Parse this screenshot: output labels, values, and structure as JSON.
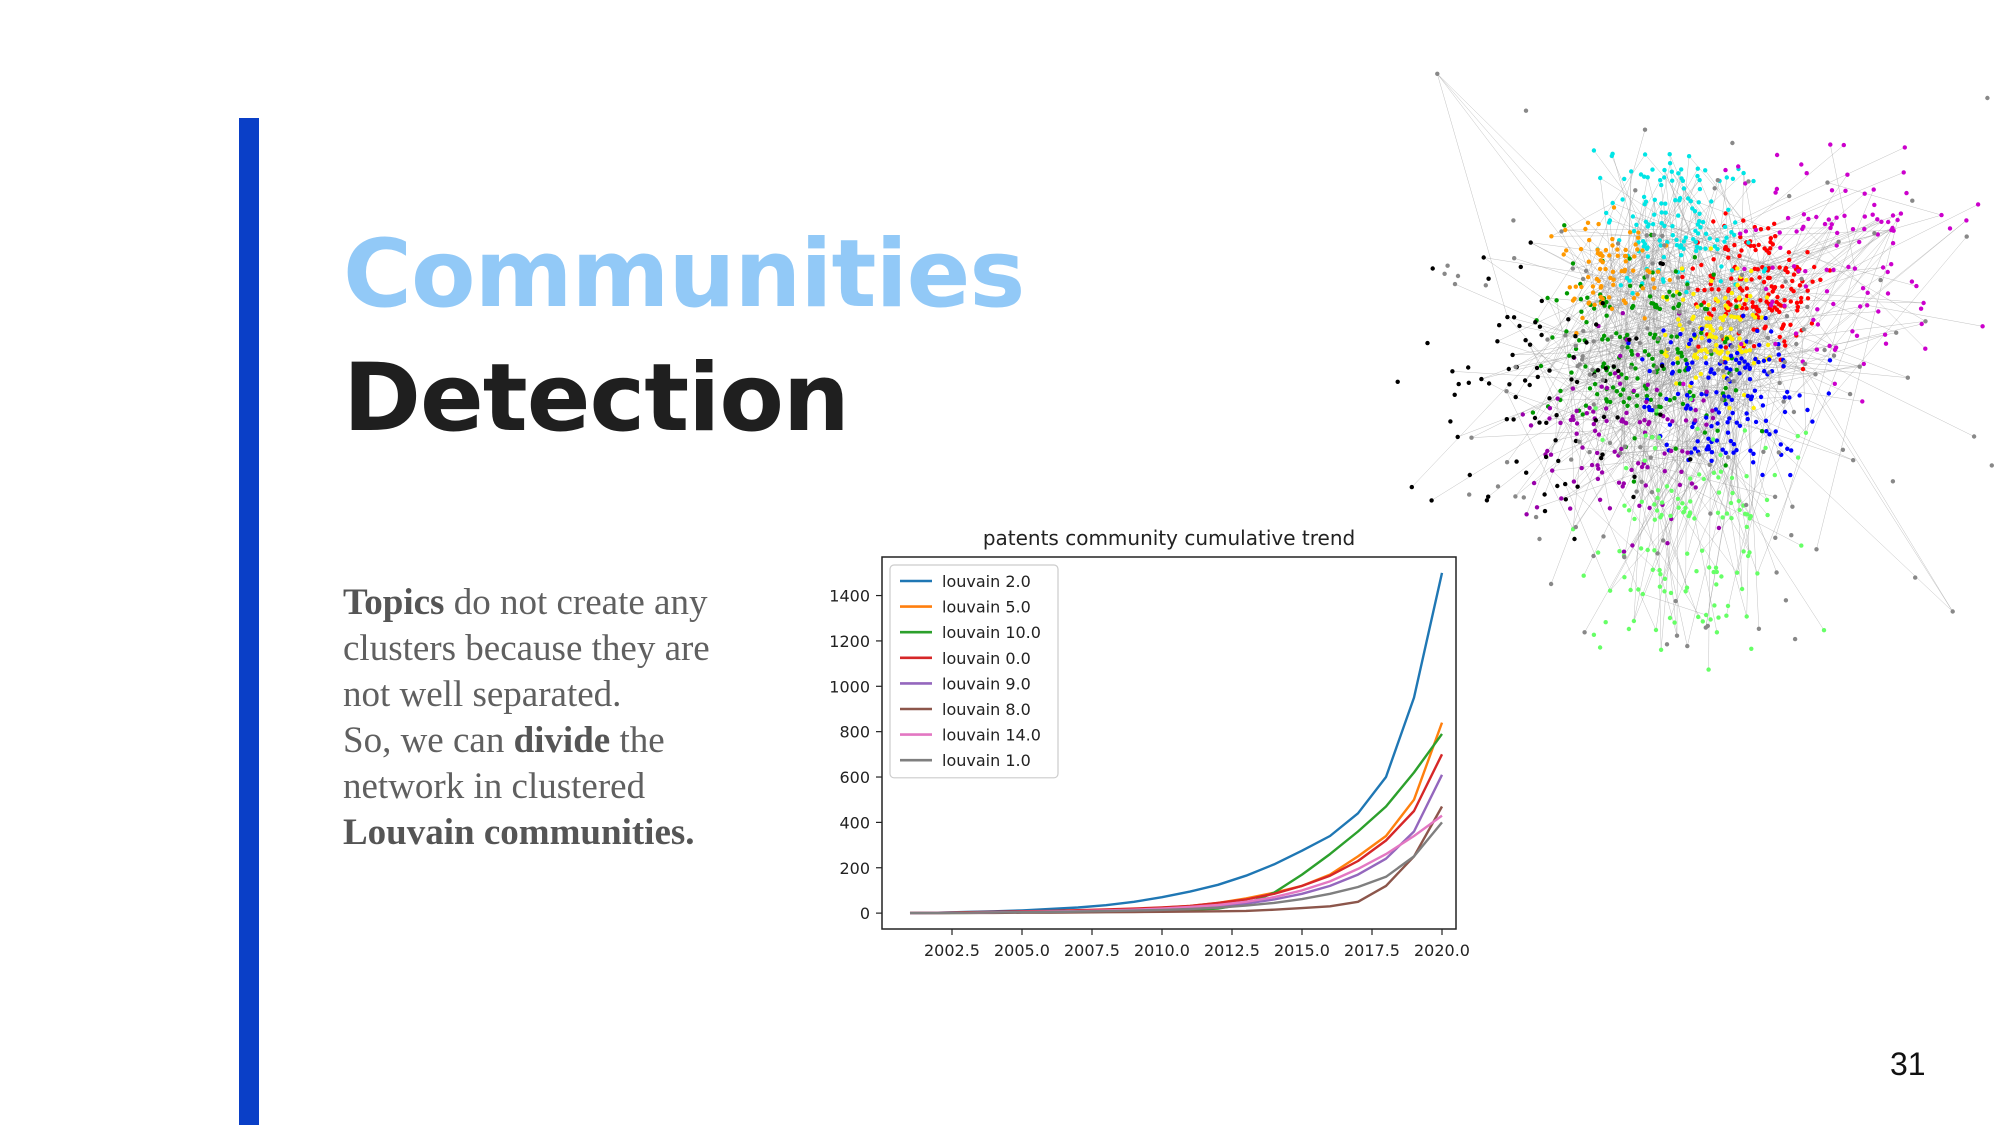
{
  "slide": {
    "title_line1": "Communities",
    "title_line2": "Detection",
    "page_number": "31",
    "colors": {
      "accent_bar": "#0a3fc7",
      "title_line1": "#92c9f7",
      "title_line2": "#1f1f1f",
      "body_text": "#606060"
    }
  },
  "body": {
    "topics": "Topics",
    "line1_rest": " do not create any",
    "line2": "clusters because they are",
    "line3": "not well separated.",
    "line4_start": "So, we can ",
    "divide": "divide",
    "line4_end": " the",
    "line5": "network in clustered",
    "louvain": "Louvain communities."
  },
  "network_image": {
    "icon": "network-graph-illustration",
    "cluster_colors": [
      "#ff0000",
      "#00e5e5",
      "#ffee00",
      "#009900",
      "#0000ff",
      "#ff9900",
      "#cc00cc",
      "#9900aa",
      "#66ff66",
      "#000000",
      "#888888"
    ]
  },
  "chart_data": {
    "type": "line",
    "title": "patents community cumulative trend",
    "xlabel": "",
    "ylabel": "",
    "xlim": [
      2000,
      2020.5
    ],
    "ylim": [
      -70,
      1570
    ],
    "xticks": [
      2002.5,
      2005.0,
      2007.5,
      2010.0,
      2012.5,
      2015.0,
      2017.5,
      2020.0
    ],
    "xtick_labels": [
      "2002.5",
      "2005.0",
      "2007.5",
      "2010.0",
      "2012.5",
      "2015.0",
      "2017.5",
      "2020.0"
    ],
    "yticks": [
      0,
      200,
      400,
      600,
      800,
      1000,
      1200,
      1400
    ],
    "ytick_labels": [
      "0",
      "200",
      "400",
      "600",
      "800",
      "1000",
      "1200",
      "1400"
    ],
    "legend_position": "top-left",
    "x": [
      2001,
      2002,
      2003,
      2004,
      2005,
      2006,
      2007,
      2008,
      2009,
      2010,
      2011,
      2012,
      2013,
      2014,
      2015,
      2016,
      2017,
      2018,
      2019,
      2020
    ],
    "series": [
      {
        "name": "louvain 2.0",
        "color": "#1f77b4",
        "values": [
          0,
          2,
          5,
          8,
          12,
          18,
          25,
          35,
          50,
          70,
          95,
          125,
          165,
          215,
          275,
          340,
          440,
          600,
          950,
          1500
        ]
      },
      {
        "name": "louvain 5.0",
        "color": "#ff7f0e",
        "values": [
          0,
          1,
          2,
          3,
          5,
          7,
          10,
          14,
          18,
          24,
          32,
          45,
          65,
          90,
          120,
          170,
          250,
          340,
          500,
          840
        ]
      },
      {
        "name": "louvain 10.0",
        "color": "#2ca02c",
        "values": [
          0,
          1,
          1,
          2,
          3,
          4,
          5,
          6,
          8,
          10,
          14,
          20,
          40,
          90,
          170,
          260,
          360,
          470,
          620,
          790
        ]
      },
      {
        "name": "louvain 0.0",
        "color": "#d62728",
        "values": [
          0,
          2,
          4,
          6,
          8,
          10,
          13,
          16,
          20,
          25,
          32,
          45,
          60,
          85,
          120,
          165,
          230,
          320,
          450,
          700
        ]
      },
      {
        "name": "louvain 9.0",
        "color": "#9467bd",
        "values": [
          0,
          1,
          2,
          3,
          4,
          6,
          8,
          10,
          13,
          17,
          22,
          30,
          42,
          60,
          85,
          120,
          170,
          240,
          360,
          610
        ]
      },
      {
        "name": "louvain 8.0",
        "color": "#8c564b",
        "values": [
          0,
          0,
          1,
          1,
          2,
          2,
          3,
          4,
          5,
          6,
          7,
          8,
          10,
          15,
          22,
          30,
          50,
          120,
          250,
          470
        ]
      },
      {
        "name": "louvain 14.0",
        "color": "#e377c2",
        "values": [
          0,
          1,
          2,
          3,
          5,
          7,
          9,
          12,
          15,
          20,
          27,
          36,
          50,
          70,
          100,
          140,
          195,
          260,
          340,
          430
        ]
      },
      {
        "name": "louvain 1.0",
        "color": "#7f7f7f",
        "values": [
          0,
          1,
          2,
          3,
          4,
          5,
          7,
          9,
          11,
          14,
          18,
          24,
          33,
          45,
          62,
          85,
          115,
          160,
          250,
          400
        ]
      }
    ]
  }
}
